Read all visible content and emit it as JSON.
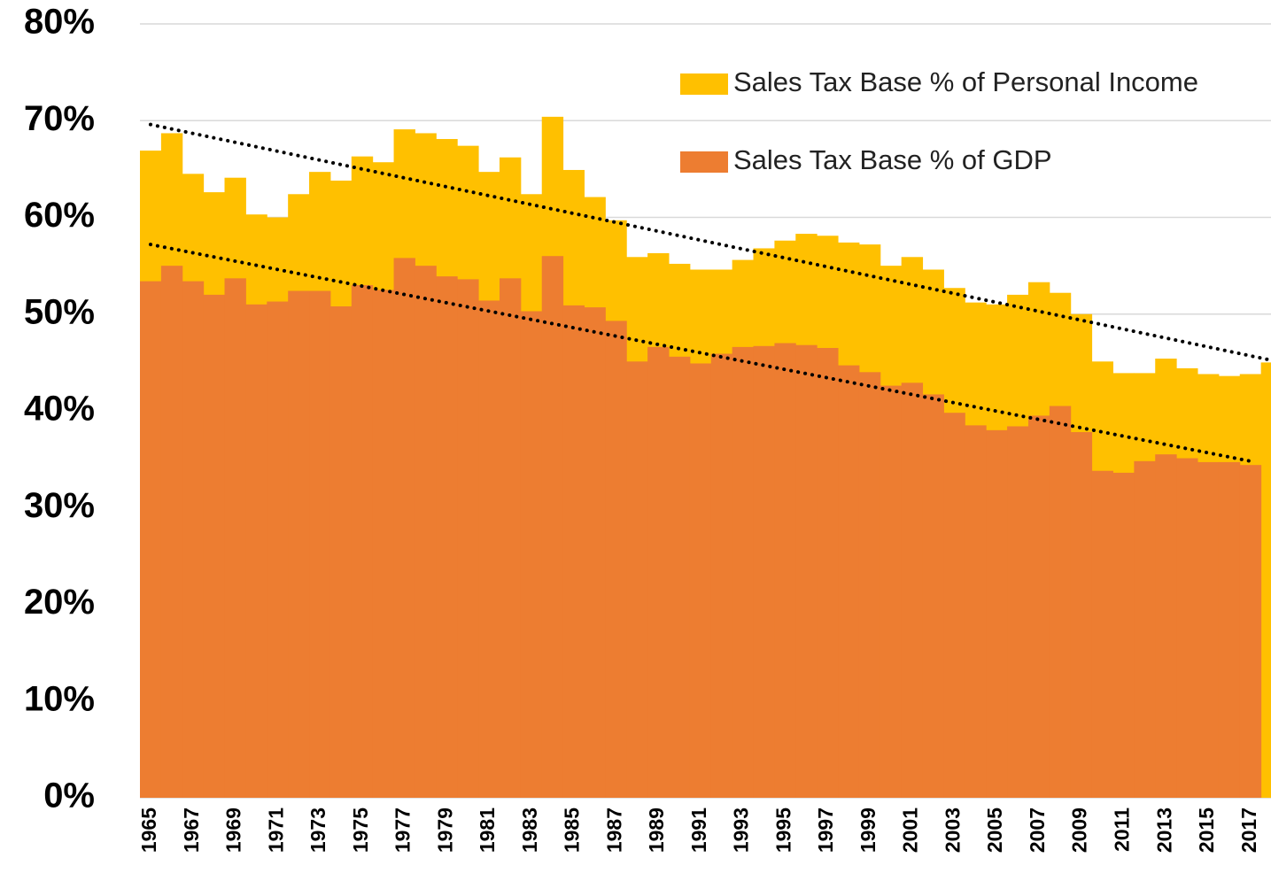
{
  "chart_data": {
    "type": "bar",
    "categories": [
      1965,
      null,
      1967,
      null,
      1969,
      null,
      1971,
      null,
      1973,
      null,
      1975,
      null,
      1977,
      null,
      1979,
      null,
      1981,
      null,
      1983,
      null,
      1985,
      null,
      1987,
      null,
      1989,
      null,
      1991,
      null,
      1993,
      null,
      1995,
      null,
      1997,
      null,
      1999,
      null,
      2001,
      null,
      2003,
      null,
      2005,
      null,
      2007,
      null,
      2009,
      null,
      2011,
      null,
      2013,
      null,
      2015,
      null,
      2017,
      null
    ],
    "series": [
      {
        "name": "Sales Tax Base % of Personal Income",
        "color": "#ffc000",
        "values": [
          66.9,
          68.7,
          64.5,
          62.6,
          64.1,
          60.3,
          60.0,
          62.4,
          64.7,
          63.8,
          66.3,
          65.7,
          69.1,
          68.7,
          68.1,
          67.4,
          64.7,
          66.2,
          62.4,
          70.4,
          64.9,
          62.1,
          59.7,
          55.9,
          56.3,
          55.2,
          54.6,
          54.6,
          55.6,
          56.8,
          57.6,
          58.3,
          58.1,
          57.4,
          57.2,
          55.0,
          55.9,
          54.6,
          52.7,
          51.2,
          51.0,
          52.0,
          53.3,
          52.2,
          50.0,
          45.1,
          43.9,
          43.9,
          45.4,
          44.4,
          43.8,
          43.6,
          43.8,
          45.0
        ],
        "trend": [
          69.6,
          45.3
        ]
      },
      {
        "name": "Sales Tax Base % of GDP",
        "color": "#ed7d31",
        "values": [
          53.4,
          55.0,
          53.4,
          52.0,
          53.7,
          51.0,
          51.3,
          52.4,
          52.4,
          50.8,
          53.0,
          52.5,
          55.8,
          55.0,
          53.9,
          53.6,
          51.4,
          53.7,
          50.3,
          56.0,
          50.9,
          50.7,
          49.3,
          45.1,
          46.6,
          45.6,
          44.9,
          45.9,
          46.6,
          46.7,
          47.0,
          46.8,
          46.5,
          44.7,
          44.0,
          42.6,
          42.9,
          41.7,
          39.8,
          38.5,
          38.0,
          38.4,
          39.5,
          40.5,
          37.8,
          33.8,
          33.6,
          34.8,
          35.5,
          35.1,
          34.7,
          34.7,
          34.4,
          null
        ],
        "trend": [
          57.2,
          34.8
        ]
      }
    ],
    "ylim": [
      0,
      80
    ],
    "yticks": [
      {
        "value": 0,
        "label": "0%"
      },
      {
        "value": 10,
        "label": "10%"
      },
      {
        "value": 20,
        "label": "20%"
      },
      {
        "value": 30,
        "label": "30%"
      },
      {
        "value": 40,
        "label": "40%"
      },
      {
        "value": 50,
        "label": "50%"
      },
      {
        "value": 60,
        "label": "60%"
      },
      {
        "value": 70,
        "label": "70%"
      },
      {
        "value": 80,
        "label": "80%"
      }
    ],
    "grid": true,
    "legend": "upper right"
  }
}
